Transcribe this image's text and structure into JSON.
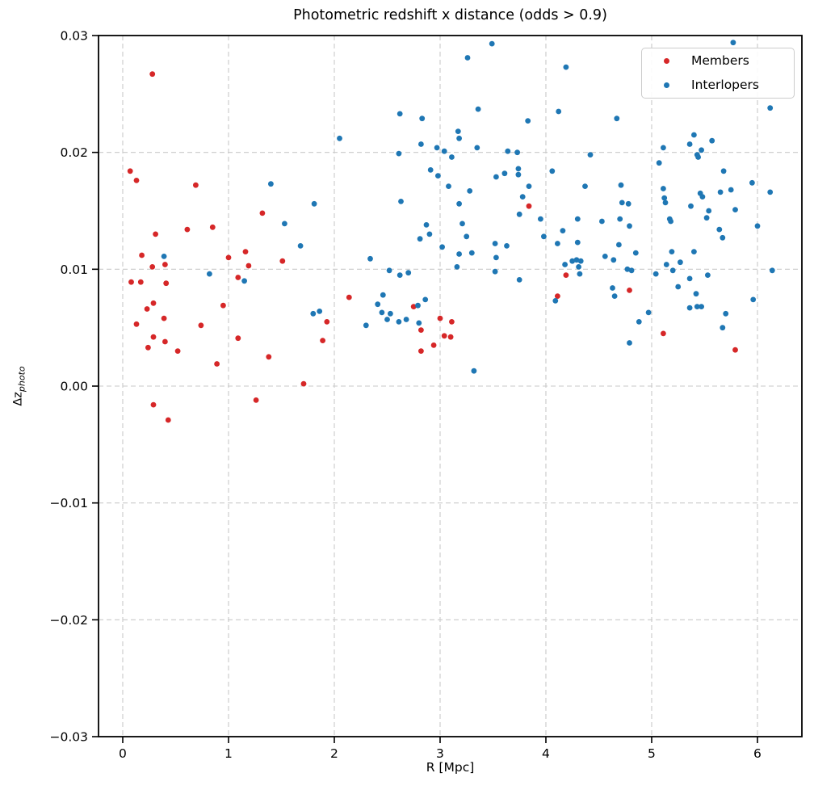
{
  "chart_data": {
    "type": "scatter",
    "title": "Photometric redshift x distance (odds > 0.9)",
    "xlabel": "R [Mpc]",
    "ylabel": "Δz_photo",
    "ylabel_base": "Δz",
    "ylabel_sub": "photo",
    "xlim": [
      -0.229,
      6.42
    ],
    "ylim": [
      -0.03,
      0.03
    ],
    "xticks": [
      0,
      1,
      2,
      3,
      4,
      5,
      6
    ],
    "xtick_labels": [
      "0",
      "1",
      "2",
      "3",
      "4",
      "5",
      "6"
    ],
    "yticks": [
      -0.03,
      -0.02,
      -0.01,
      0.0,
      0.01,
      0.02,
      0.03
    ],
    "ytick_labels": [
      "−0.03",
      "−0.02",
      "−0.01",
      "0.00",
      "0.01",
      "0.02",
      "0.03"
    ],
    "grid": true,
    "grid_style": "dashed",
    "grid_color": "#c9c9c9",
    "legend": {
      "position": "upper right",
      "entries": [
        {
          "label": "Members",
          "color": "#d62728"
        },
        {
          "label": "Interlopers",
          "color": "#1f77b4"
        }
      ]
    },
    "series": [
      {
        "name": "Members",
        "color": "#d62728",
        "points": [
          [
            0.07,
            0.0184
          ],
          [
            0.08,
            0.0089
          ],
          [
            0.13,
            0.0176
          ],
          [
            0.13,
            0.0053
          ],
          [
            0.17,
            0.0089
          ],
          [
            0.18,
            0.0112
          ],
          [
            0.23,
            0.0066
          ],
          [
            0.24,
            0.0033
          ],
          [
            0.28,
            0.0267
          ],
          [
            0.28,
            0.0102
          ],
          [
            0.29,
            0.0071
          ],
          [
            0.29,
            0.0042
          ],
          [
            0.29,
            -0.0016
          ],
          [
            0.31,
            0.013
          ],
          [
            0.39,
            0.0058
          ],
          [
            0.4,
            0.0104
          ],
          [
            0.4,
            0.0038
          ],
          [
            0.41,
            0.0088
          ],
          [
            0.43,
            -0.0029
          ],
          [
            0.52,
            0.003
          ],
          [
            0.61,
            0.0134
          ],
          [
            0.69,
            0.0172
          ],
          [
            0.74,
            0.0052
          ],
          [
            0.85,
            0.0136
          ],
          [
            0.89,
            0.0019
          ],
          [
            0.95,
            0.0069
          ],
          [
            1.0,
            0.011
          ],
          [
            1.09,
            0.0093
          ],
          [
            1.09,
            0.0041
          ],
          [
            1.16,
            0.0115
          ],
          [
            1.19,
            0.0103
          ],
          [
            1.26,
            -0.0012
          ],
          [
            1.32,
            0.0148
          ],
          [
            1.38,
            0.0025
          ],
          [
            1.51,
            0.0107
          ],
          [
            1.71,
            0.0002
          ],
          [
            1.89,
            0.0039
          ],
          [
            1.93,
            0.0055
          ],
          [
            2.14,
            0.0076
          ],
          [
            2.75,
            0.0068
          ],
          [
            2.82,
            0.0048
          ],
          [
            2.82,
            0.003
          ],
          [
            2.94,
            0.0035
          ],
          [
            3.0,
            0.0058
          ],
          [
            3.04,
            0.0043
          ],
          [
            3.1,
            0.0042
          ],
          [
            3.11,
            0.0055
          ],
          [
            3.84,
            0.0154
          ],
          [
            4.11,
            0.0077
          ],
          [
            4.19,
            0.0095
          ],
          [
            4.79,
            0.0082
          ],
          [
            5.11,
            0.0045
          ],
          [
            5.79,
            0.0031
          ]
        ]
      },
      {
        "name": "Interlopers",
        "color": "#1f77b4",
        "points": [
          [
            0.39,
            0.0111
          ],
          [
            0.82,
            0.0096
          ],
          [
            1.15,
            0.009
          ],
          [
            1.4,
            0.0173
          ],
          [
            1.53,
            0.0139
          ],
          [
            1.68,
            0.012
          ],
          [
            1.8,
            0.0062
          ],
          [
            1.81,
            0.0156
          ],
          [
            1.86,
            0.0064
          ],
          [
            2.05,
            0.0212
          ],
          [
            2.3,
            0.0052
          ],
          [
            2.34,
            0.0109
          ],
          [
            2.41,
            0.007
          ],
          [
            2.45,
            0.0063
          ],
          [
            2.46,
            0.0078
          ],
          [
            2.5,
            0.0057
          ],
          [
            2.52,
            0.0099
          ],
          [
            2.53,
            0.0062
          ],
          [
            2.61,
            0.0199
          ],
          [
            2.61,
            0.0055
          ],
          [
            2.62,
            0.0233
          ],
          [
            2.62,
            0.0095
          ],
          [
            2.63,
            0.0158
          ],
          [
            2.68,
            0.0057
          ],
          [
            2.7,
            0.0097
          ],
          [
            2.79,
            0.0069
          ],
          [
            2.8,
            0.0054
          ],
          [
            2.81,
            0.0126
          ],
          [
            2.82,
            0.0207
          ],
          [
            2.83,
            0.0229
          ],
          [
            2.86,
            0.0074
          ],
          [
            2.87,
            0.0138
          ],
          [
            2.9,
            0.013
          ],
          [
            2.91,
            0.0185
          ],
          [
            2.97,
            0.0204
          ],
          [
            2.98,
            0.018
          ],
          [
            3.02,
            0.0119
          ],
          [
            3.04,
            0.0201
          ],
          [
            3.08,
            0.0171
          ],
          [
            3.11,
            0.0196
          ],
          [
            3.16,
            0.0102
          ],
          [
            3.17,
            0.0218
          ],
          [
            3.18,
            0.0212
          ],
          [
            3.18,
            0.0156
          ],
          [
            3.18,
            0.0113
          ],
          [
            3.21,
            0.0139
          ],
          [
            3.25,
            0.0128
          ],
          [
            3.26,
            0.0281
          ],
          [
            3.28,
            0.0167
          ],
          [
            3.3,
            0.0114
          ],
          [
            3.32,
            0.0013
          ],
          [
            3.35,
            0.0204
          ],
          [
            3.36,
            0.0237
          ],
          [
            3.49,
            0.0293
          ],
          [
            3.52,
            0.0122
          ],
          [
            3.52,
            0.0098
          ],
          [
            3.53,
            0.0179
          ],
          [
            3.53,
            0.011
          ],
          [
            3.61,
            0.0182
          ],
          [
            3.63,
            0.012
          ],
          [
            3.64,
            0.0201
          ],
          [
            3.73,
            0.02
          ],
          [
            3.74,
            0.0186
          ],
          [
            3.74,
            0.0181
          ],
          [
            3.75,
            0.0147
          ],
          [
            3.75,
            0.0091
          ],
          [
            3.78,
            0.0162
          ],
          [
            3.83,
            0.0227
          ],
          [
            3.84,
            0.0171
          ],
          [
            3.95,
            0.0143
          ],
          [
            3.98,
            0.0128
          ],
          [
            4.06,
            0.0184
          ],
          [
            4.09,
            0.0073
          ],
          [
            4.11,
            0.0122
          ],
          [
            4.12,
            0.0235
          ],
          [
            4.16,
            0.0133
          ],
          [
            4.18,
            0.0104
          ],
          [
            4.19,
            0.0273
          ],
          [
            4.25,
            0.0107
          ],
          [
            4.29,
            0.0108
          ],
          [
            4.3,
            0.0143
          ],
          [
            4.3,
            0.0123
          ],
          [
            4.31,
            0.0102
          ],
          [
            4.32,
            0.0096
          ],
          [
            4.33,
            0.0107
          ],
          [
            4.37,
            0.0171
          ],
          [
            4.42,
            0.0198
          ],
          [
            4.53,
            0.0141
          ],
          [
            4.56,
            0.0111
          ],
          [
            4.63,
            0.0084
          ],
          [
            4.64,
            0.0108
          ],
          [
            4.65,
            0.0077
          ],
          [
            4.67,
            0.0229
          ],
          [
            4.69,
            0.0121
          ],
          [
            4.7,
            0.0143
          ],
          [
            4.71,
            0.0172
          ],
          [
            4.72,
            0.0157
          ],
          [
            4.77,
            0.01
          ],
          [
            4.78,
            0.0156
          ],
          [
            4.79,
            0.0137
          ],
          [
            4.79,
            0.0037
          ],
          [
            4.81,
            0.0099
          ],
          [
            4.85,
            0.0114
          ],
          [
            4.88,
            0.0055
          ],
          [
            4.97,
            0.0063
          ],
          [
            5.04,
            0.0096
          ],
          [
            5.07,
            0.0191
          ],
          [
            5.11,
            0.0204
          ],
          [
            5.11,
            0.0169
          ],
          [
            5.12,
            0.0161
          ],
          [
            5.13,
            0.0157
          ],
          [
            5.14,
            0.0104
          ],
          [
            5.17,
            0.0143
          ],
          [
            5.18,
            0.0141
          ],
          [
            5.19,
            0.0115
          ],
          [
            5.2,
            0.0099
          ],
          [
            5.25,
            0.0085
          ],
          [
            5.27,
            0.0106
          ],
          [
            5.36,
            0.0207
          ],
          [
            5.36,
            0.0092
          ],
          [
            5.36,
            0.0067
          ],
          [
            5.37,
            0.0154
          ],
          [
            5.4,
            0.0215
          ],
          [
            5.4,
            0.0115
          ],
          [
            5.42,
            0.0079
          ],
          [
            5.43,
            0.0198
          ],
          [
            5.43,
            0.0068
          ],
          [
            5.44,
            0.0196
          ],
          [
            5.46,
            0.0165
          ],
          [
            5.47,
            0.0202
          ],
          [
            5.47,
            0.0068
          ],
          [
            5.48,
            0.0162
          ],
          [
            5.52,
            0.0144
          ],
          [
            5.53,
            0.0095
          ],
          [
            5.54,
            0.015
          ],
          [
            5.57,
            0.021
          ],
          [
            5.64,
            0.0134
          ],
          [
            5.65,
            0.0166
          ],
          [
            5.67,
            0.0127
          ],
          [
            5.67,
            0.005
          ],
          [
            5.68,
            0.0184
          ],
          [
            5.7,
            0.0062
          ],
          [
            5.75,
            0.0168
          ],
          [
            5.77,
            0.0294
          ],
          [
            5.79,
            0.0151
          ],
          [
            5.95,
            0.0174
          ],
          [
            5.96,
            0.0074
          ],
          [
            6.0,
            0.0137
          ],
          [
            6.12,
            0.0238
          ],
          [
            6.12,
            0.0166
          ],
          [
            6.14,
            0.0099
          ]
        ]
      }
    ],
    "marker_radius": 3.4,
    "spine_color": "#000000",
    "tick_label_color": "#000000"
  }
}
